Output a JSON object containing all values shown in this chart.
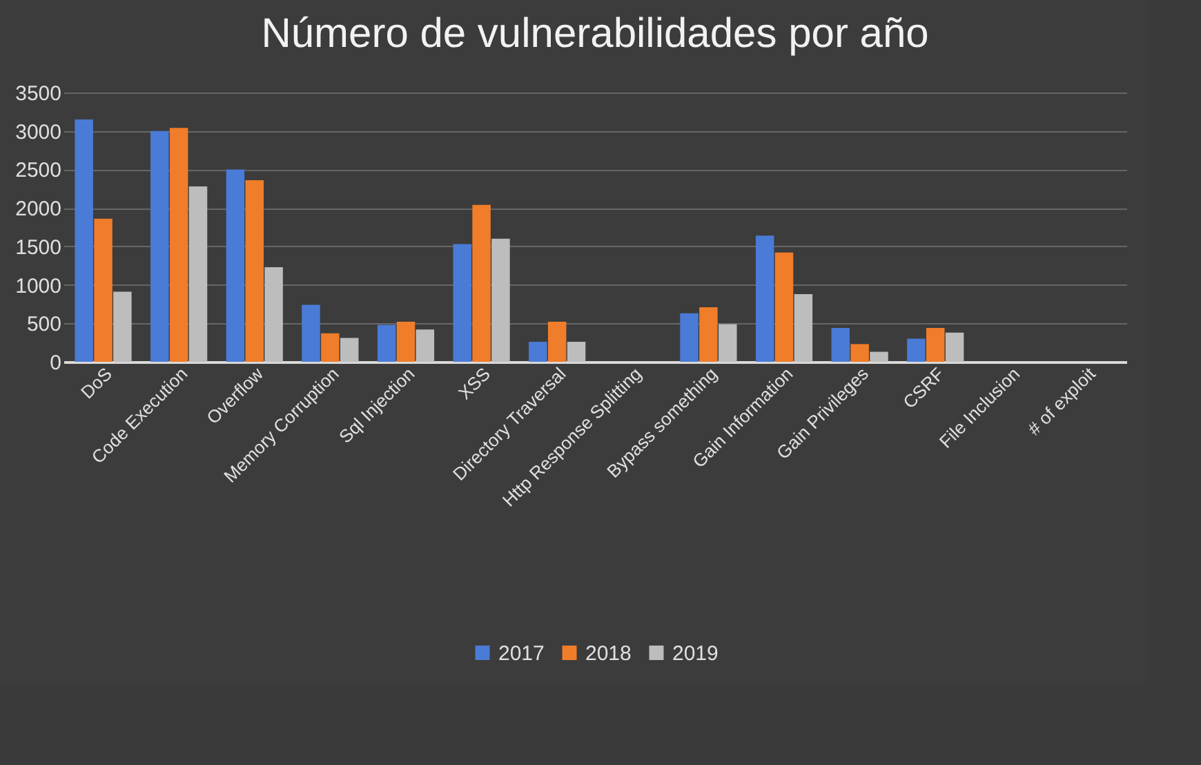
{
  "chart_data": {
    "type": "bar",
    "title": "Número de vulnerabilidades por año",
    "categories": [
      "DoS",
      "Code Execution",
      "Overflow",
      "Memory Corruption",
      "Sql Injection",
      "XSS",
      "Directory Traversal",
      "Http Response Splitting",
      "Bypass something",
      "Gain Information",
      "Gain Privileges",
      "CSRF",
      "File Inclusion",
      "# of exploit"
    ],
    "series": [
      {
        "name": "2017",
        "color": "#4a7bd6",
        "values": [
          3150,
          3000,
          2500,
          740,
          480,
          1530,
          260,
          null,
          630,
          1640,
          440,
          300,
          null,
          null
        ]
      },
      {
        "name": "2018",
        "color": "#f07d2a",
        "values": [
          1860,
          3040,
          2360,
          370,
          520,
          2040,
          520,
          null,
          710,
          1420,
          230,
          440,
          null,
          null
        ]
      },
      {
        "name": "2019",
        "color": "#bdbdbd",
        "values": [
          910,
          2280,
          1230,
          310,
          420,
          1600,
          260,
          null,
          490,
          880,
          130,
          380,
          null,
          null
        ]
      }
    ],
    "ylim": [
      0,
      3500
    ],
    "yticks": [
      0,
      500,
      1000,
      1500,
      2000,
      2500,
      3000,
      3500
    ],
    "grid": "y",
    "legend": "bottom"
  }
}
